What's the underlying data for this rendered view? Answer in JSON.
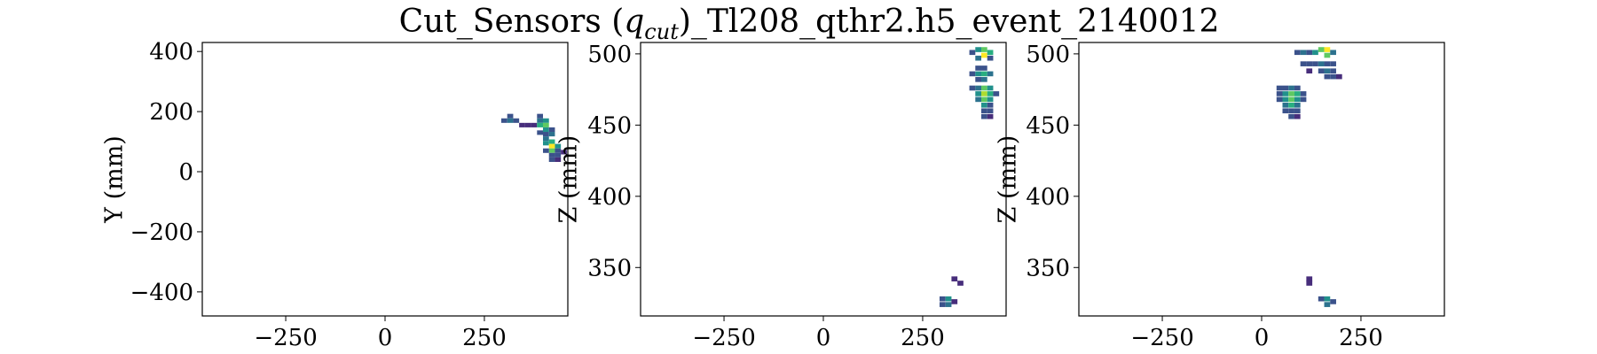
{
  "figure": {
    "title_main": "Cut_Sensors (",
    "title_q": "q",
    "title_sub": "cut",
    "title_rest": ")_Tl208_qthr2.h5_event_2140012"
  },
  "colormap": [
    "#440154",
    "#472d7b",
    "#3b528b",
    "#2c728e",
    "#21918c",
    "#28ae80",
    "#5ec962",
    "#addc30",
    "#fde725"
  ],
  "chart_data": [
    {
      "type": "heatmap",
      "xlabel": "",
      "ylabel": "Y (mm)",
      "xlim": [
        -460,
        460
      ],
      "ylim": [
        -480,
        430
      ],
      "xticks": [
        -250,
        0,
        250
      ],
      "xtick_labels": [
        "−250",
        "0",
        "250"
      ],
      "yticks": [
        -400,
        -200,
        0,
        200,
        400
      ],
      "ytick_labels": [
        "−400",
        "−200",
        "0",
        "200",
        "400"
      ],
      "cell": [
        15,
        15
      ],
      "cells": [
        [
          300,
          170,
          0.25
        ],
        [
          315,
          185,
          0.3
        ],
        [
          315,
          170,
          0.4
        ],
        [
          330,
          170,
          0.2
        ],
        [
          345,
          155,
          0.1
        ],
        [
          360,
          155,
          0.1
        ],
        [
          375,
          155,
          0.15
        ],
        [
          390,
          185,
          0.2
        ],
        [
          390,
          170,
          0.4
        ],
        [
          390,
          155,
          0.6
        ],
        [
          405,
          170,
          0.5
        ],
        [
          405,
          155,
          0.8
        ],
        [
          405,
          140,
          0.5
        ],
        [
          405,
          125,
          0.3
        ],
        [
          420,
          140,
          0.3
        ],
        [
          420,
          125,
          0.4
        ],
        [
          405,
          110,
          0.4
        ],
        [
          405,
          95,
          0.5
        ],
        [
          420,
          100,
          0.6
        ],
        [
          420,
          85,
          1.0
        ],
        [
          420,
          70,
          0.7
        ],
        [
          435,
          85,
          0.5
        ],
        [
          435,
          70,
          0.3
        ],
        [
          405,
          70,
          0.2
        ],
        [
          420,
          55,
          0.3
        ],
        [
          435,
          55,
          0.2
        ],
        [
          450,
          65,
          0.1
        ],
        [
          420,
          40,
          0.2
        ],
        [
          435,
          40,
          0.1
        ],
        [
          390,
          130,
          0.2
        ]
      ]
    },
    {
      "type": "heatmap",
      "xlabel": "",
      "ylabel": "Z (mm)",
      "xlim": [
        -460,
        460
      ],
      "ylim": [
        316,
        508
      ],
      "xticks": [
        -250,
        0,
        250
      ],
      "xtick_labels": [
        "−250",
        "0",
        "250"
      ],
      "yticks": [
        350,
        400,
        450,
        500
      ],
      "ytick_labels": [
        "350",
        "400",
        "450",
        "500"
      ],
      "cell": [
        15,
        3.5
      ],
      "cells": [
        [
          375,
          501,
          0.3
        ],
        [
          390,
          503,
          0.5
        ],
        [
          405,
          503,
          0.8
        ],
        [
          405,
          499,
          1.0
        ],
        [
          420,
          501,
          0.6
        ],
        [
          390,
          497,
          0.4
        ],
        [
          420,
          497,
          0.3
        ],
        [
          390,
          490,
          0.2
        ],
        [
          405,
          490,
          0.3
        ],
        [
          375,
          486,
          0.3
        ],
        [
          390,
          486,
          0.5
        ],
        [
          405,
          486,
          0.6
        ],
        [
          420,
          486,
          0.4
        ],
        [
          390,
          482,
          0.3
        ],
        [
          405,
          482,
          0.4
        ],
        [
          375,
          476,
          0.2
        ],
        [
          390,
          476,
          0.4
        ],
        [
          405,
          476,
          0.7
        ],
        [
          420,
          476,
          0.5
        ],
        [
          390,
          472,
          0.5
        ],
        [
          405,
          472,
          0.9
        ],
        [
          420,
          472,
          0.6
        ],
        [
          435,
          472,
          0.2
        ],
        [
          390,
          468,
          0.4
        ],
        [
          405,
          468,
          0.7
        ],
        [
          420,
          468,
          0.5
        ],
        [
          405,
          464,
          0.5
        ],
        [
          420,
          464,
          0.3
        ],
        [
          405,
          460,
          0.3
        ],
        [
          420,
          460,
          0.2
        ],
        [
          405,
          456,
          0.2
        ],
        [
          420,
          456,
          0.1
        ],
        [
          330,
          342,
          0.1
        ],
        [
          345,
          339,
          0.1
        ],
        [
          300,
          328,
          0.3
        ],
        [
          315,
          328,
          0.5
        ],
        [
          315,
          324,
          0.4
        ],
        [
          300,
          324,
          0.2
        ],
        [
          330,
          326,
          0.1
        ]
      ]
    },
    {
      "type": "heatmap",
      "xlabel": "",
      "ylabel": "Z (mm)",
      "xlim": [
        -460,
        460
      ],
      "ylim": [
        316,
        508
      ],
      "xticks": [
        -250,
        0,
        250
      ],
      "xtick_labels": [
        "−250",
        "0",
        "250"
      ],
      "yticks": [
        350,
        400,
        450,
        500
      ],
      "ytick_labels": [
        "350",
        "400",
        "450",
        "500"
      ],
      "cell": [
        15,
        3.5
      ],
      "cells": [
        [
          90,
          501,
          0.3
        ],
        [
          105,
          501,
          0.4
        ],
        [
          120,
          501,
          0.3
        ],
        [
          135,
          501,
          0.5
        ],
        [
          150,
          503,
          0.7
        ],
        [
          165,
          503,
          1.0
        ],
        [
          165,
          499,
          0.8
        ],
        [
          180,
          501,
          0.4
        ],
        [
          105,
          493,
          0.2
        ],
        [
          120,
          493,
          0.3
        ],
        [
          135,
          493,
          0.3
        ],
        [
          150,
          493,
          0.4
        ],
        [
          165,
          493,
          0.3
        ],
        [
          180,
          493,
          0.2
        ],
        [
          120,
          488,
          0.1
        ],
        [
          150,
          488,
          0.3
        ],
        [
          165,
          488,
          0.4
        ],
        [
          180,
          488,
          0.2
        ],
        [
          165,
          484,
          0.3
        ],
        [
          180,
          484,
          0.2
        ],
        [
          195,
          484,
          0.1
        ],
        [
          45,
          476,
          0.2
        ],
        [
          60,
          476,
          0.3
        ],
        [
          75,
          476,
          0.4
        ],
        [
          90,
          476,
          0.2
        ],
        [
          45,
          472,
          0.3
        ],
        [
          60,
          472,
          0.5
        ],
        [
          75,
          472,
          0.7
        ],
        [
          90,
          472,
          0.6
        ],
        [
          105,
          472,
          0.3
        ],
        [
          45,
          468,
          0.3
        ],
        [
          60,
          468,
          0.5
        ],
        [
          75,
          468,
          0.8
        ],
        [
          90,
          468,
          0.5
        ],
        [
          105,
          468,
          0.2
        ],
        [
          60,
          464,
          0.4
        ],
        [
          75,
          464,
          0.6
        ],
        [
          90,
          464,
          0.4
        ],
        [
          60,
          460,
          0.3
        ],
        [
          75,
          460,
          0.3
        ],
        [
          90,
          460,
          0.2
        ],
        [
          75,
          456,
          0.2
        ],
        [
          90,
          456,
          0.1
        ],
        [
          120,
          342,
          0.1
        ],
        [
          120,
          339,
          0.1
        ],
        [
          150,
          328,
          0.3
        ],
        [
          165,
          328,
          0.5
        ],
        [
          165,
          324,
          0.4
        ],
        [
          180,
          326,
          0.2
        ]
      ]
    }
  ]
}
